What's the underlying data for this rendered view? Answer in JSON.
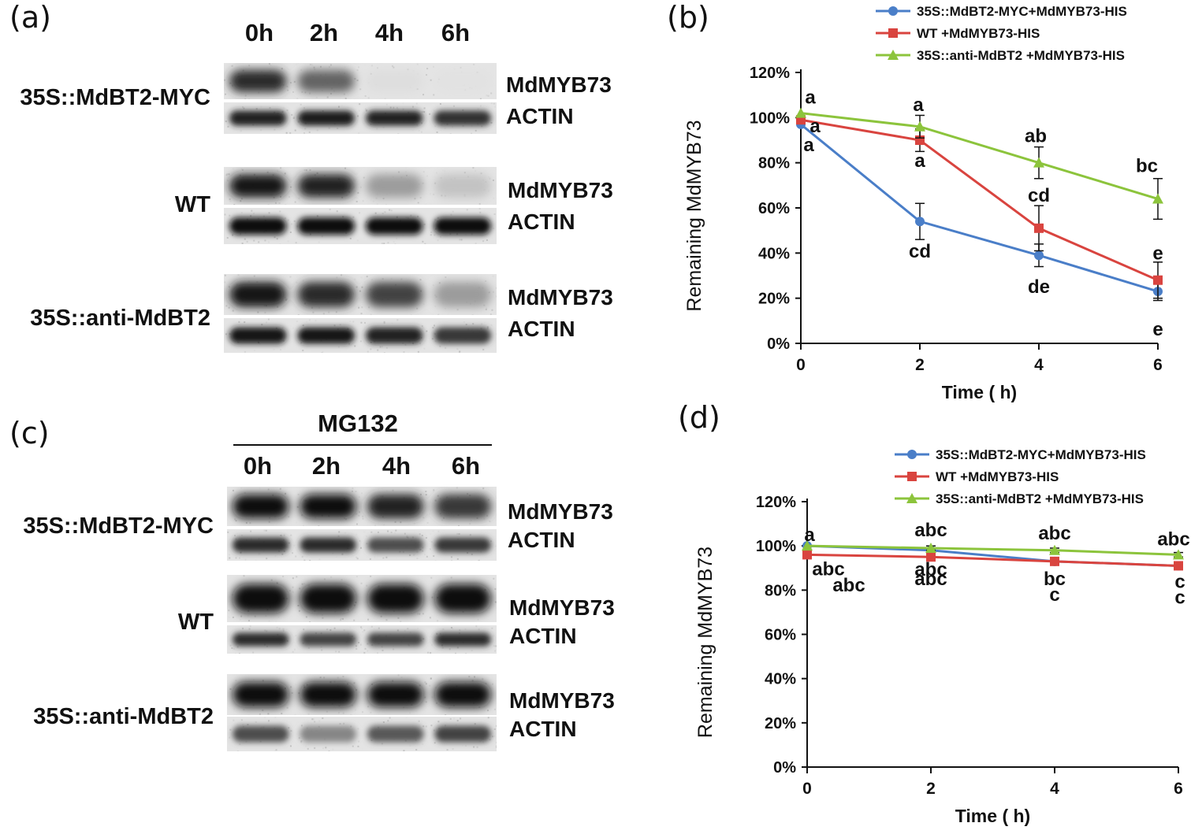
{
  "panels": {
    "a": "(a)",
    "b": "(b)",
    "c": "(c)",
    "d": "(d)"
  },
  "blot_a": {
    "lanes": [
      "0h",
      "2h",
      "4h",
      "6h"
    ],
    "samples": [
      {
        "name": "35S::MdBT2-MYC",
        "target": "MdMYB73",
        "control": "ACTIN",
        "target_intensity": [
          0.85,
          0.6,
          0.06,
          0.04
        ],
        "control_intensity": [
          0.9,
          0.92,
          0.9,
          0.82
        ]
      },
      {
        "name": "WT",
        "target": "MdMYB73",
        "control": "ACTIN",
        "target_intensity": [
          0.95,
          0.9,
          0.35,
          0.18
        ],
        "control_intensity": [
          1.0,
          1.0,
          1.0,
          1.0
        ]
      },
      {
        "name": "35S::anti-MdBT2",
        "target": "MdMYB73",
        "control": "ACTIN",
        "target_intensity": [
          0.95,
          0.85,
          0.75,
          0.35
        ],
        "control_intensity": [
          0.95,
          0.95,
          0.9,
          0.8
        ]
      }
    ]
  },
  "blot_c": {
    "treatment": "MG132",
    "lanes": [
      "0h",
      "2h",
      "4h",
      "6h"
    ],
    "samples": [
      {
        "name": "35S::MdBT2-MYC",
        "target": "MdMYB73",
        "control": "ACTIN",
        "target_intensity": [
          1.0,
          1.0,
          0.9,
          0.8
        ],
        "control_intensity": [
          0.85,
          0.85,
          0.7,
          0.8
        ]
      },
      {
        "name": "WT",
        "target": "MdMYB73",
        "control": "ACTIN",
        "target_intensity": [
          1.0,
          1.0,
          1.0,
          1.0
        ],
        "control_intensity": [
          0.85,
          0.75,
          0.75,
          0.85
        ]
      },
      {
        "name": "35S::anti-MdBT2",
        "target": "MdMYB73",
        "control": "ACTIN",
        "target_intensity": [
          1.0,
          1.0,
          1.0,
          1.0
        ],
        "control_intensity": [
          0.7,
          0.45,
          0.65,
          0.75
        ]
      }
    ]
  },
  "chart_data": [
    {
      "type": "line",
      "panel": "b",
      "x": [
        0,
        2,
        4,
        6
      ],
      "xlabel": "Time ( h)",
      "ylabel": "Remaining MdMYB73",
      "xticks": [
        "0",
        "2",
        "4",
        "6"
      ],
      "yticks": [
        "0%",
        "20%",
        "40%",
        "60%",
        "80%",
        "100%",
        "120%"
      ],
      "ylim": [
        0,
        120
      ],
      "legend_position": "top",
      "series": [
        {
          "name": "35S::MdBT2-MYC+MdMYB73-HIS",
          "color": "#4a7ec8",
          "marker": "circle",
          "values": [
            97,
            54,
            39,
            23
          ],
          "errors": [
            0,
            8,
            5,
            4
          ],
          "labels": [
            "a",
            "cd",
            "de",
            "e"
          ]
        },
        {
          "name": "WT +MdMYB73-HIS",
          "color": "#d9443f",
          "marker": "square",
          "values": [
            99,
            90,
            51,
            28
          ],
          "errors": [
            0,
            5,
            10,
            8
          ],
          "labels": [
            "a",
            "a",
            "cd",
            "e"
          ]
        },
        {
          "name": "35S::anti-MdBT2 +MdMYB73-HIS",
          "color": "#8cc43c",
          "marker": "triangle",
          "values": [
            102,
            96,
            80,
            64
          ],
          "errors": [
            0,
            5,
            7,
            9
          ],
          "labels": [
            "a",
            "a",
            "ab",
            "bc"
          ]
        }
      ]
    },
    {
      "type": "line",
      "panel": "d",
      "x": [
        0,
        2,
        4,
        6
      ],
      "xlabel": "Time ( h)",
      "ylabel": "Remaining MdMYB73",
      "xticks": [
        "0",
        "2",
        "4",
        "6"
      ],
      "yticks": [
        "0%",
        "20%",
        "40%",
        "60%",
        "80%",
        "100%",
        "120%"
      ],
      "ylim": [
        0,
        120
      ],
      "legend_position": "top",
      "series": [
        {
          "name": "35S::MdBT2-MYC+MdMYB73-HIS",
          "color": "#4a7ec8",
          "marker": "circle",
          "values": [
            100,
            98,
            93,
            91
          ],
          "errors": [
            0,
            1,
            1,
            1
          ],
          "labels": [
            "a",
            "abc",
            "bc",
            "c"
          ]
        },
        {
          "name": "WT +MdMYB73-HIS",
          "color": "#d9443f",
          "marker": "square",
          "values": [
            96,
            95,
            93,
            91
          ],
          "errors": [
            0,
            1,
            1,
            1
          ],
          "labels": [
            "abc",
            "abc",
            "c",
            "c"
          ]
        },
        {
          "name": "35S::anti-MdBT2 +MdMYB73-HIS",
          "color": "#8cc43c",
          "marker": "triangle",
          "values": [
            100,
            99,
            98,
            96
          ],
          "errors": [
            0,
            1,
            1,
            1
          ],
          "labels": [
            "abc",
            "abc",
            "abc",
            "abc"
          ]
        }
      ]
    }
  ]
}
